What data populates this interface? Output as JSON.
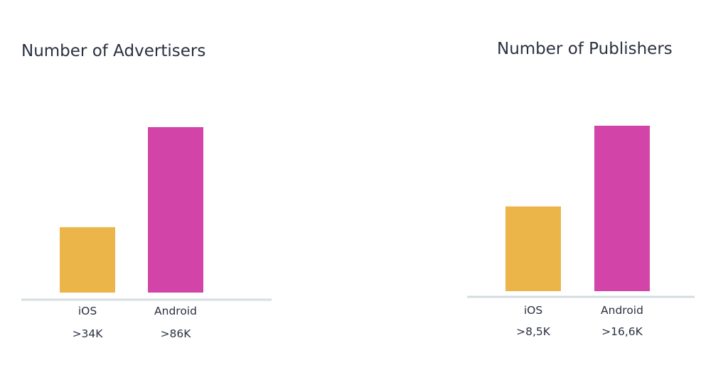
{
  "chart_data": [
    {
      "type": "bar",
      "title": "Number of Advertisers",
      "categories": [
        "iOS",
        "Android"
      ],
      "values": [
        34,
        86
      ],
      "value_labels": [
        ">34K",
        ">86K"
      ],
      "ylim": [
        0,
        86
      ],
      "grid": false,
      "bar_colors": [
        "#ebb54a",
        "#d244a8"
      ],
      "axis_color": "#d5dde0"
    },
    {
      "type": "bar",
      "title": "Number of Publishers",
      "categories": [
        "iOS",
        "Android"
      ],
      "values": [
        8.5,
        16.6
      ],
      "value_labels": [
        ">8,5K",
        ">16,6K"
      ],
      "ylim": [
        0,
        16.6
      ],
      "grid": false,
      "bar_colors": [
        "#ebb54a",
        "#d244a8"
      ],
      "axis_color": "#d5dde0"
    }
  ]
}
